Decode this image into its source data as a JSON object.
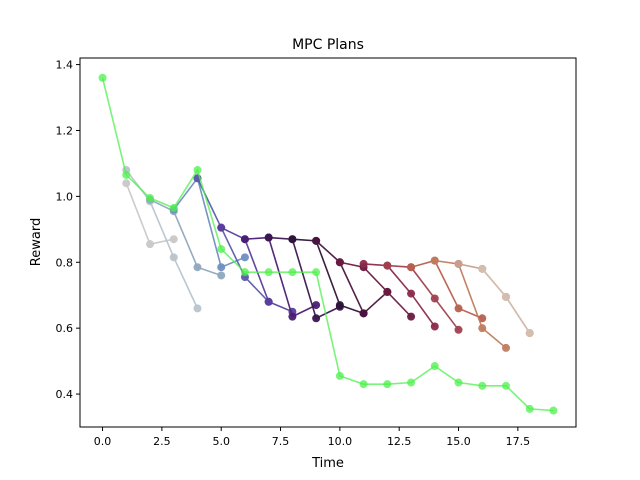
{
  "chart_data": {
    "type": "line",
    "title": "MPC Plans",
    "xlabel": "Time",
    "ylabel": "Reward",
    "xlim": [
      -0.95,
      19.95
    ],
    "ylim": [
      0.3,
      1.42
    ],
    "xticks": [
      0.0,
      2.5,
      5.0,
      7.5,
      10.0,
      12.5,
      15.0,
      17.5
    ],
    "xtick_labels": [
      "0.0",
      "2.5",
      "5.0",
      "7.5",
      "10.0",
      "12.5",
      "15.0",
      "17.5"
    ],
    "yticks": [
      0.4,
      0.6,
      0.8,
      1.0,
      1.2,
      1.4
    ],
    "ytick_labels": [
      "0.4",
      "0.6",
      "0.8",
      "1.0",
      "1.2",
      "1.4"
    ],
    "grid": false,
    "legend": false,
    "plans": [
      {
        "color": "#c8c8c8",
        "x": [
          1,
          2,
          3
        ],
        "y": [
          1.04,
          0.855,
          0.87
        ]
      },
      {
        "color": "#b8c4cc",
        "x": [
          1,
          2,
          3,
          4
        ],
        "y": [
          1.08,
          0.985,
          0.815,
          0.66
        ]
      },
      {
        "color": "#8fa8bd",
        "x": [
          2,
          3,
          4,
          5
        ],
        "y": [
          0.99,
          0.955,
          0.785,
          0.76
        ]
      },
      {
        "color": "#6f8fc0",
        "x": [
          3,
          4,
          5,
          6
        ],
        "y": [
          0.96,
          1.055,
          0.785,
          0.815
        ]
      },
      {
        "color": "#5e5aaa",
        "x": [
          4,
          5,
          6,
          7
        ],
        "y": [
          1.055,
          0.905,
          0.755,
          0.68
        ]
      },
      {
        "color": "#5a3d9c",
        "x": [
          5,
          6,
          7,
          8
        ],
        "y": [
          0.905,
          0.87,
          0.68,
          0.65
        ]
      },
      {
        "color": "#4a1e74",
        "x": [
          6,
          7,
          8,
          9
        ],
        "y": [
          0.87,
          0.875,
          0.635,
          0.67
        ]
      },
      {
        "color": "#3a1650",
        "x": [
          7,
          8,
          9,
          10
        ],
        "y": [
          0.875,
          0.87,
          0.63,
          0.665
        ]
      },
      {
        "color": "#2e1438",
        "x": [
          8,
          9,
          10,
          11
        ],
        "y": [
          0.87,
          0.865,
          0.67,
          0.645
        ]
      },
      {
        "color": "#4a1540",
        "x": [
          9,
          10,
          11,
          12
        ],
        "y": [
          0.865,
          0.8,
          0.645,
          0.71
        ]
      },
      {
        "color": "#6a1a40",
        "x": [
          10,
          11,
          12,
          13
        ],
        "y": [
          0.8,
          0.785,
          0.71,
          0.635
        ]
      },
      {
        "color": "#8a2a4a",
        "x": [
          11,
          12,
          13,
          14
        ],
        "y": [
          0.795,
          0.79,
          0.705,
          0.605
        ]
      },
      {
        "color": "#a04050",
        "x": [
          12,
          13,
          14,
          15
        ],
        "y": [
          0.79,
          0.785,
          0.69,
          0.595
        ]
      },
      {
        "color": "#b86050",
        "x": [
          13,
          14,
          15,
          16
        ],
        "y": [
          0.785,
          0.805,
          0.66,
          0.63
        ]
      },
      {
        "color": "#c07c5e",
        "x": [
          14,
          15,
          16,
          17
        ],
        "y": [
          0.805,
          0.795,
          0.6,
          0.54
        ]
      },
      {
        "color": "#c8a090",
        "x": [
          15,
          16,
          17,
          18
        ],
        "y": [
          0.795,
          0.78,
          0.695,
          0.585
        ]
      },
      {
        "color": "#d4beb0",
        "x": [
          16,
          17,
          18
        ],
        "y": [
          0.78,
          0.695,
          0.585
        ]
      }
    ],
    "actual": {
      "color": "#4cf04c",
      "x": [
        0,
        1,
        2,
        3,
        4,
        5,
        6,
        7,
        8,
        9,
        10,
        11,
        12,
        13,
        14,
        15,
        16,
        17,
        18,
        19
      ],
      "y": [
        1.36,
        1.065,
        0.995,
        0.965,
        1.08,
        0.84,
        0.77,
        0.77,
        0.77,
        0.77,
        0.455,
        0.43,
        0.43,
        0.435,
        0.485,
        0.435,
        0.425,
        0.425,
        0.355,
        0.35
      ]
    }
  }
}
